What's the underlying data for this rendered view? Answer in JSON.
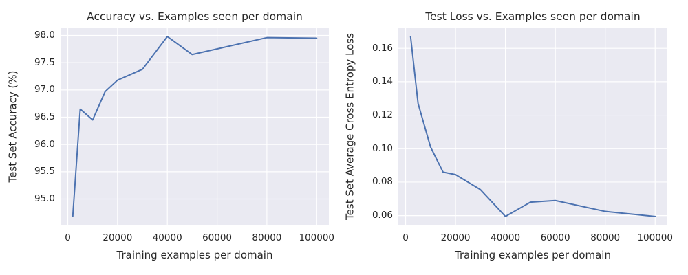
{
  "figure": {
    "background": "#ffffff"
  },
  "style": {
    "axes_background": "#eaeaf2",
    "grid_color": "#ffffff",
    "text_color": "#262626",
    "line_color": "#4c72b0"
  },
  "chart_data": [
    {
      "type": "line",
      "title": "Accuracy vs. Examples seen per domain",
      "xlabel": "Training examples per domain",
      "ylabel": "Test Set Accuracy (%)",
      "x": [
        2000,
        5000,
        10000,
        15000,
        20000,
        30000,
        40000,
        50000,
        80000,
        100000
      ],
      "y": [
        94.68,
        96.65,
        96.45,
        96.97,
        97.18,
        97.38,
        97.98,
        97.65,
        97.96,
        97.95
      ],
      "xticks": [
        0,
        20000,
        40000,
        60000,
        80000,
        100000
      ],
      "xtick_labels": [
        "0",
        "20000",
        "40000",
        "60000",
        "80000",
        "100000"
      ],
      "yticks": [
        95.0,
        95.5,
        96.0,
        96.5,
        97.0,
        97.5,
        98.0
      ],
      "ytick_labels": [
        "95.0",
        "95.5",
        "96.0",
        "96.5",
        "97.0",
        "97.5",
        "98.0"
      ],
      "xlim": [
        -2900,
        104900
      ],
      "ylim": [
        94.515,
        98.145
      ],
      "grid": true,
      "legend": null,
      "line_color": "#4c72b0"
    },
    {
      "type": "line",
      "title": "Test Loss vs. Examples seen per domain",
      "xlabel": "Training examples per domain",
      "ylabel": "Test Set Average Cross Entropy Loss",
      "x": [
        2000,
        5000,
        10000,
        15000,
        20000,
        30000,
        40000,
        50000,
        60000,
        80000,
        100000
      ],
      "y": [
        0.167,
        0.127,
        0.101,
        0.086,
        0.0845,
        0.0755,
        0.0595,
        0.068,
        0.069,
        0.0625,
        0.0595
      ],
      "xticks": [
        0,
        20000,
        40000,
        60000,
        80000,
        100000
      ],
      "xtick_labels": [
        "0",
        "20000",
        "40000",
        "60000",
        "80000",
        "100000"
      ],
      "yticks": [
        0.06,
        0.08,
        0.1,
        0.12,
        0.14,
        0.16
      ],
      "ytick_labels": [
        "0.06",
        "0.08",
        "0.10",
        "0.12",
        "0.14",
        "0.16"
      ],
      "xlim": [
        -2900,
        104900
      ],
      "ylim": [
        0.0541,
        0.1724
      ],
      "grid": true,
      "legend": null,
      "line_color": "#4c72b0"
    }
  ]
}
